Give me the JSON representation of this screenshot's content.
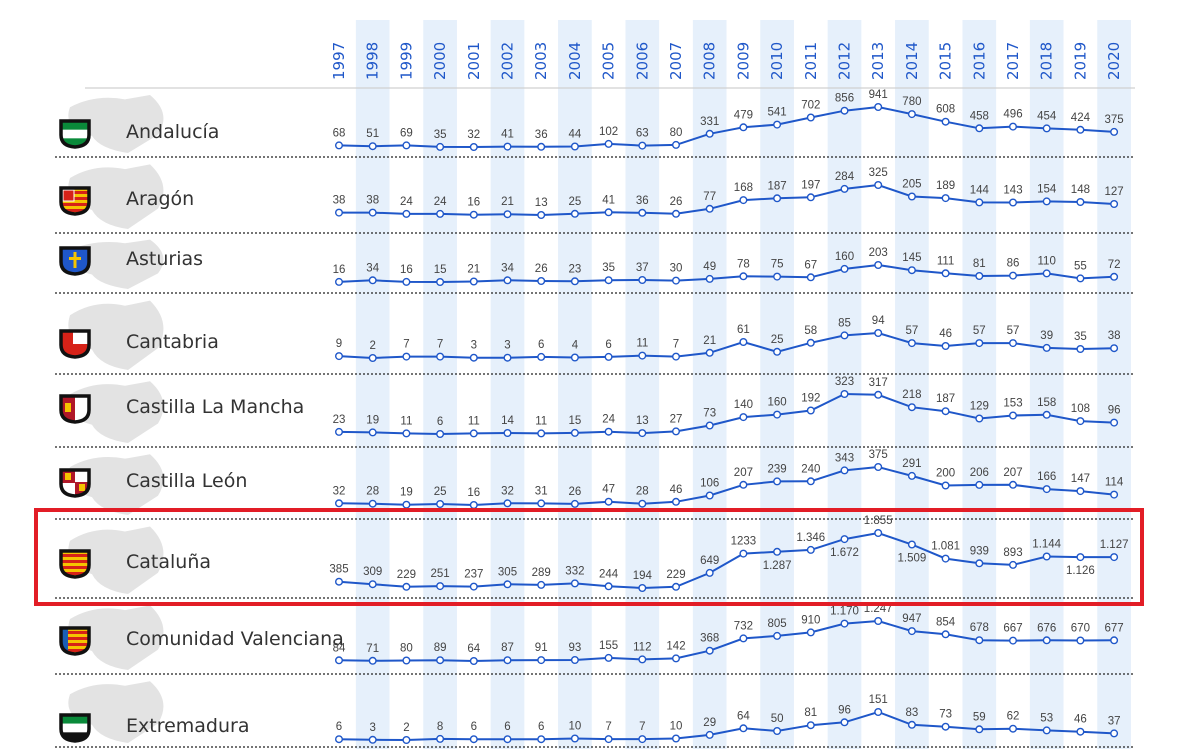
{
  "chart_data": {
    "type": "line",
    "x": [
      "1997",
      "1998",
      "1999",
      "2000",
      "2001",
      "2002",
      "2003",
      "2004",
      "2005",
      "2006",
      "2007",
      "2008",
      "2009",
      "2010",
      "2011",
      "2012",
      "2013",
      "2014",
      "2015",
      "2016",
      "2017",
      "2018",
      "2019",
      "2020"
    ],
    "highlighted_series": "Cataluña",
    "colors": {
      "line": "#1f57c9",
      "year_label": "#1f57c9",
      "stripe": "#e6f0fb",
      "highlight_box": "#e21d26",
      "region_shape": "#e3e3e3"
    },
    "series": [
      {
        "name": "Andalucía",
        "flag_icon": "andalucia-flag-icon",
        "values": [
          68,
          51,
          69,
          35,
          32,
          41,
          36,
          44,
          102,
          63,
          80,
          331,
          479,
          541,
          702,
          856,
          941,
          780,
          608,
          458,
          496,
          454,
          424,
          375
        ],
        "labels": [
          "68",
          "51",
          "69",
          "35",
          "32",
          "41",
          "36",
          "44",
          "102",
          "63",
          "80",
          "331",
          "479",
          "541",
          "702",
          "856",
          "941",
          "780",
          "608",
          "458",
          "496",
          "454",
          "424",
          "375"
        ]
      },
      {
        "name": "Aragón",
        "flag_icon": "aragon-flag-icon",
        "values": [
          38,
          38,
          24,
          24,
          16,
          21,
          13,
          25,
          41,
          36,
          26,
          77,
          168,
          187,
          197,
          284,
          325,
          205,
          189,
          144,
          143,
          154,
          148,
          127
        ],
        "labels": [
          "38",
          "38",
          "24",
          "24",
          "16",
          "21",
          "13",
          "25",
          "41",
          "36",
          "26",
          "77",
          "168",
          "187",
          "197",
          "284",
          "325",
          "205",
          "189",
          "144",
          "143",
          "154",
          "148",
          "127"
        ]
      },
      {
        "name": "Asturias",
        "flag_icon": "asturias-flag-icon",
        "values": [
          16,
          34,
          16,
          15,
          21,
          34,
          26,
          23,
          35,
          37,
          30,
          49,
          78,
          75,
          67,
          160,
          203,
          145,
          111,
          81,
          86,
          110,
          55,
          72
        ],
        "labels": [
          "16",
          "34",
          "16",
          "15",
          "21",
          "34",
          "26",
          "23",
          "35",
          "37",
          "30",
          "49",
          "78",
          "75",
          "67",
          "160",
          "203",
          "145",
          "111",
          "81",
          "86",
          "110",
          "55",
          "72"
        ]
      },
      {
        "name": "Cantabria",
        "flag_icon": "cantabria-flag-icon",
        "values": [
          9,
          2,
          7,
          7,
          3,
          3,
          6,
          4,
          6,
          11,
          7,
          21,
          61,
          25,
          58,
          85,
          94,
          57,
          46,
          57,
          57,
          39,
          35,
          38
        ],
        "labels": [
          "9",
          "2",
          "7",
          "7",
          "3",
          "3",
          "6",
          "4",
          "6",
          "11",
          "7",
          "21",
          "61",
          "25",
          "58",
          "85",
          "94",
          "57",
          "46",
          "57",
          "57",
          "39",
          "35",
          "38"
        ]
      },
      {
        "name": "Castilla La Mancha",
        "flag_icon": "castilla-la-mancha-flag-icon",
        "values": [
          23,
          19,
          11,
          6,
          11,
          14,
          11,
          15,
          24,
          13,
          27,
          73,
          140,
          160,
          192,
          323,
          317,
          218,
          187,
          129,
          153,
          158,
          108,
          96
        ],
        "labels": [
          "23",
          "19",
          "11",
          "6",
          "11",
          "14",
          "11",
          "15",
          "24",
          "13",
          "27",
          "73",
          "140",
          "160",
          "192",
          "323",
          "317",
          "218",
          "187",
          "129",
          "153",
          "158",
          "108",
          "96"
        ]
      },
      {
        "name": "Castilla León",
        "flag_icon": "castilla-leon-flag-icon",
        "values": [
          32,
          28,
          19,
          25,
          16,
          32,
          31,
          26,
          47,
          28,
          46,
          106,
          207,
          239,
          240,
          343,
          375,
          291,
          200,
          206,
          207,
          166,
          147,
          114
        ],
        "labels": [
          "32",
          "28",
          "19",
          "25",
          "16",
          "32",
          "31",
          "26",
          "47",
          "28",
          "46",
          "106",
          "207",
          "239",
          "240",
          "343",
          "375",
          "291",
          "200",
          "206",
          "207",
          "166",
          "147",
          "114"
        ]
      },
      {
        "name": "Cataluña",
        "flag_icon": "cataluna-flag-icon",
        "values": [
          385,
          309,
          229,
          251,
          237,
          305,
          289,
          332,
          244,
          194,
          229,
          649,
          1233,
          1287,
          1346,
          1672,
          1855,
          1509,
          1081,
          939,
          893,
          1144,
          1126,
          1127
        ],
        "labels": [
          "385",
          "309",
          "229",
          "251",
          "237",
          "305",
          "289",
          "332",
          "244",
          "194",
          "229",
          "649",
          "1233",
          "1.287",
          "1.346",
          "1.672",
          "1.855",
          "1.509",
          "1.081",
          "939",
          "893",
          "1.144",
          "1.126",
          "1.127"
        ]
      },
      {
        "name": "Comunidad Valenciana",
        "flag_icon": "comunidad-valenciana-flag-icon",
        "values": [
          84,
          71,
          80,
          89,
          64,
          87,
          91,
          93,
          155,
          112,
          142,
          368,
          732,
          805,
          910,
          1170,
          1247,
          947,
          854,
          678,
          667,
          676,
          670,
          677
        ],
        "labels": [
          "84",
          "71",
          "80",
          "89",
          "64",
          "87",
          "91",
          "93",
          "155",
          "112",
          "142",
          "368",
          "732",
          "805",
          "910",
          "1.170",
          "1.247",
          "947",
          "854",
          "678",
          "667",
          "676",
          "670",
          "677"
        ]
      },
      {
        "name": "Extremadura",
        "flag_icon": "extremadura-flag-icon",
        "values": [
          6,
          3,
          2,
          8,
          6,
          6,
          6,
          10,
          7,
          7,
          10,
          29,
          64,
          50,
          81,
          96,
          151,
          83,
          73,
          59,
          62,
          53,
          46,
          37
        ],
        "labels": [
          "6",
          "3",
          "2",
          "8",
          "6",
          "6",
          "6",
          "10",
          "7",
          "7",
          "10",
          "29",
          "64",
          "50",
          "81",
          "96",
          "151",
          "83",
          "73",
          "59",
          "62",
          "53",
          "46",
          "37"
        ]
      }
    ]
  }
}
